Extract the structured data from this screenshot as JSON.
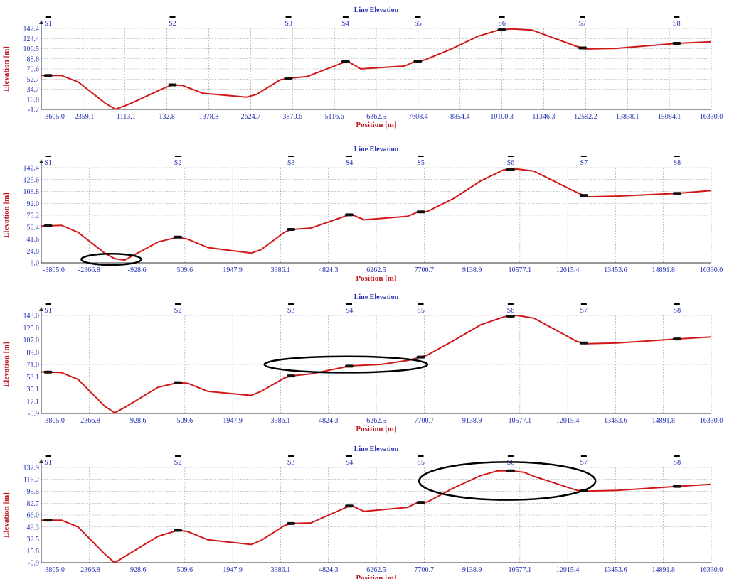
{
  "colors": {
    "line": "#d01818",
    "title": "#1f2fb2",
    "axis_label": "#c0181f",
    "tick": "#1f2fb2",
    "highlight": "#000000"
  },
  "chart_data": [
    {
      "type": "line",
      "title": "Line Elevation",
      "xlabel": "Position [m]",
      "ylabel": "Elevation [m]",
      "grid": true,
      "xlim": [
        -3605.0,
        16330.0
      ],
      "ylim": [
        -1.2,
        145
      ],
      "xticks": [
        "-3605.0",
        "-2359.1",
        "-1113.1",
        "132.8",
        "1378.8",
        "2624.7",
        "3870.6",
        "5116.6",
        "6362.5",
        "7608.4",
        "8854.4",
        "10100.3",
        "11346.3",
        "12592.2",
        "13838.1",
        "15084.1",
        "16330.0"
      ],
      "yticks": [
        "-1.2",
        "16.8",
        "34.7",
        "52.7",
        "70.6",
        "88.6",
        "106.5",
        "124.4",
        "142.4"
      ],
      "stations": [
        {
          "name": "S1",
          "x": -3400
        },
        {
          "name": "S2",
          "x": 300
        },
        {
          "name": "S3",
          "x": 3750
        },
        {
          "name": "S4",
          "x": 5450
        },
        {
          "name": "S5",
          "x": 7600
        },
        {
          "name": "S6",
          "x": 10100
        },
        {
          "name": "S7",
          "x": 12500
        },
        {
          "name": "S8",
          "x": 15300
        }
      ],
      "series": [
        {
          "x": [
            -3605,
            -3000,
            -2500,
            -1700,
            -1400,
            -1000,
            0,
            300,
            600,
            1200,
            2500,
            2800,
            3500,
            3750,
            4300,
            5500,
            5900,
            7200,
            7500,
            7800,
            8600,
            9400,
            10000,
            10400,
            11000,
            12300,
            12600,
            13500,
            15300,
            16330
          ],
          "y": [
            60,
            60,
            48,
            10,
            -1,
            8,
            36,
            43,
            42,
            28,
            21,
            26,
            52,
            55,
            58,
            86,
            72,
            77,
            85,
            88,
            108,
            131,
            142,
            144,
            142,
            113,
            108,
            109,
            118,
            121
          ]
        }
      ],
      "ellipse": null
    },
    {
      "type": "line",
      "title": "Line Elevation",
      "xlabel": "Position [m]",
      "ylabel": "Elevation [m]",
      "grid": true,
      "xlim": [
        -3805.0,
        16330.0
      ],
      "ylim": [
        8.0,
        145
      ],
      "xticks": [
        "-3805.0",
        "-2366.8",
        "-928.6",
        "509.6",
        "1947.9",
        "3386.1",
        "4824.3",
        "6262.5",
        "7700.7",
        "9138.9",
        "10577.1",
        "12015.4",
        "13453.6",
        "14891.8",
        "16330.0"
      ],
      "yticks": [
        "8.0",
        "24.8",
        "41.6",
        "58.4",
        "75.2",
        "92.0",
        "108.8",
        "125.6",
        "142.4"
      ],
      "stations": [
        {
          "name": "S1",
          "x": -3600
        },
        {
          "name": "S2",
          "x": 300
        },
        {
          "name": "S3",
          "x": 3700
        },
        {
          "name": "S4",
          "x": 5450
        },
        {
          "name": "S5",
          "x": 7600
        },
        {
          "name": "S6",
          "x": 10300
        },
        {
          "name": "S7",
          "x": 12500
        },
        {
          "name": "S8",
          "x": 15300
        }
      ],
      "series": [
        {
          "x": [
            -3805,
            -3200,
            -2700,
            -1900,
            -1600,
            -1300,
            -300,
            300,
            600,
            1200,
            2500,
            2800,
            3500,
            3700,
            4300,
            5500,
            5900,
            7200,
            7500,
            7800,
            8600,
            9400,
            10100,
            10500,
            11000,
            12300,
            12600,
            13500,
            15300,
            16330
          ],
          "y": [
            61,
            62,
            52,
            22,
            14,
            12,
            38,
            45,
            42,
            30,
            22,
            27,
            52,
            56,
            58,
            78,
            70,
            75,
            81,
            82,
            101,
            126,
            142,
            143,
            140,
            109,
            103,
            104,
            108,
            112
          ]
        }
      ],
      "ellipse": {
        "cx": -1700,
        "cy": 13,
        "rxv": 900,
        "ryv": 8
      }
    },
    {
      "type": "line",
      "title": "Line Elevation",
      "xlabel": "Position [m]",
      "ylabel": "Elevation [m]",
      "grid": true,
      "xlim": [
        -3805.0,
        16330.0
      ],
      "ylim": [
        -0.9,
        145
      ],
      "xticks": [
        "-3805.0",
        "-2366.8",
        "-928.6",
        "509.6",
        "1947.9",
        "3386.1",
        "4824.3",
        "6262.5",
        "7700.7",
        "9138.9",
        "10577.1",
        "12015.4",
        "13453.6",
        "14891.8",
        "16330.0"
      ],
      "yticks": [
        "-0.9",
        "17.1",
        "35.1",
        "53.1",
        "71.0",
        "89.0",
        "107.0",
        "125.0",
        "143.0"
      ],
      "stations": [
        {
          "name": "S1",
          "x": -3600
        },
        {
          "name": "S2",
          "x": 300
        },
        {
          "name": "S3",
          "x": 3700
        },
        {
          "name": "S4",
          "x": 5450
        },
        {
          "name": "S5",
          "x": 7600
        },
        {
          "name": "S6",
          "x": 10300
        },
        {
          "name": "S7",
          "x": 12500
        },
        {
          "name": "S8",
          "x": 15300
        }
      ],
      "series": [
        {
          "x": [
            -3805,
            -3200,
            -2700,
            -1900,
            -1600,
            -1300,
            -300,
            300,
            600,
            1200,
            2500,
            2800,
            3500,
            3700,
            4300,
            5500,
            6400,
            7200,
            7600,
            7800,
            8600,
            9400,
            10100,
            10500,
            11000,
            12300,
            12600,
            13500,
            15300,
            16330
          ],
          "y": [
            61,
            60,
            50,
            10,
            0,
            8,
            38,
            45,
            44,
            32,
            26,
            32,
            52,
            55,
            58,
            70,
            72,
            78,
            83,
            86,
            108,
            131,
            143,
            145,
            141,
            106,
            103,
            104,
            110,
            113
          ]
        }
      ],
      "ellipse": {
        "cx": 5350,
        "cy": 72,
        "rxv": 2450,
        "ryv": 12
      }
    },
    {
      "type": "line",
      "title": "Line Elevation",
      "xlabel": "Position [m]",
      "ylabel": "Elevation [m]",
      "grid": true,
      "xlim": [
        -3805.0,
        16330.0
      ],
      "ylim": [
        -0.9,
        140
      ],
      "xticks": [
        "-3805.0",
        "-2366.8",
        "-928.6",
        "509.6",
        "1947.9",
        "3386.1",
        "4824.3",
        "6262.5",
        "7700.7",
        "9138.9",
        "10577.1",
        "12015.4",
        "13453.6",
        "14891.8",
        "16330.0"
      ],
      "yticks": [
        "-0.9",
        "15.8",
        "32.5",
        "49.3",
        "66.0",
        "82.7",
        "99.5",
        "116.2",
        "132.9"
      ],
      "stations": [
        {
          "name": "S1",
          "x": -3600
        },
        {
          "name": "S2",
          "x": 300
        },
        {
          "name": "S3",
          "x": 3700
        },
        {
          "name": "S4",
          "x": 5450
        },
        {
          "name": "S5",
          "x": 7600
        },
        {
          "name": "S6",
          "x": 10300
        },
        {
          "name": "S7",
          "x": 12500
        },
        {
          "name": "S8",
          "x": 15300
        }
      ],
      "series": [
        {
          "x": [
            -3805,
            -3200,
            -2700,
            -1900,
            -1600,
            -1300,
            -300,
            300,
            600,
            1200,
            2500,
            2800,
            3500,
            3700,
            4300,
            5500,
            5900,
            7200,
            7500,
            7800,
            8600,
            9400,
            9900,
            10300,
            10700,
            11000,
            12300,
            12600,
            13500,
            15300,
            16330
          ],
          "y": [
            62,
            62,
            52,
            12,
            -1,
            8,
            38,
            47,
            45,
            33,
            26,
            32,
            54,
            57,
            58,
            84,
            75,
            81,
            88,
            89,
            110,
            128,
            135,
            135,
            133,
            127,
            106,
            105,
            106,
            112,
            115
          ]
        }
      ],
      "ellipse": {
        "cx": 10200,
        "cy": 120,
        "rxv": 2650,
        "ryv": 28
      }
    }
  ]
}
